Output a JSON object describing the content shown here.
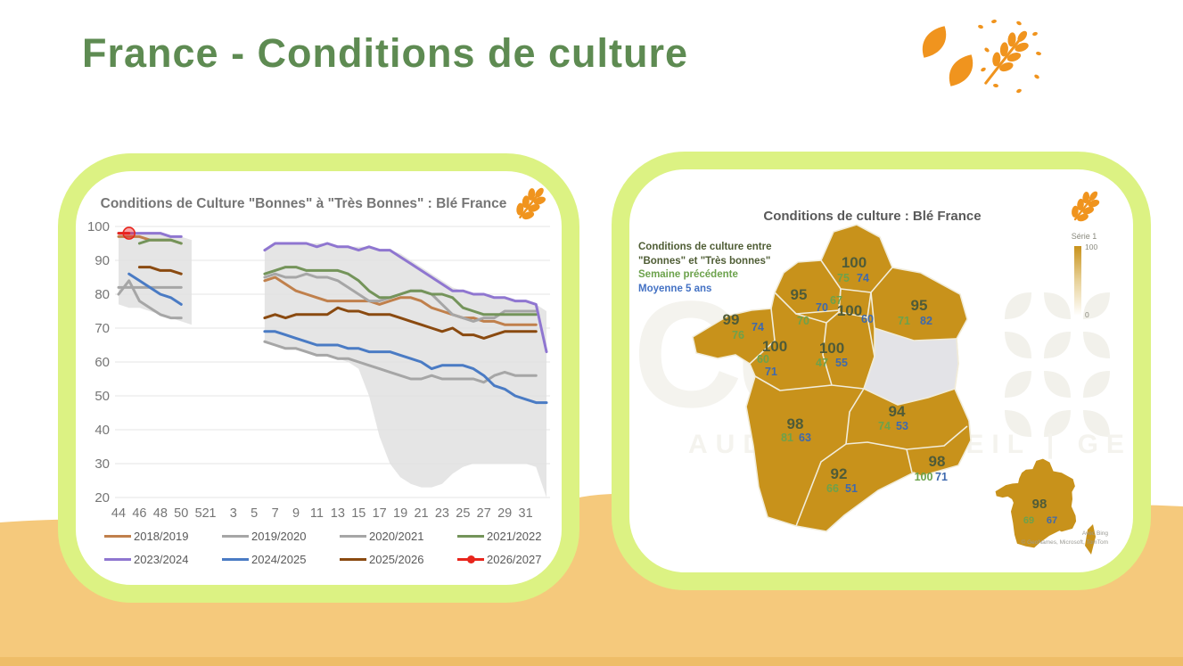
{
  "header": {
    "title": "France - Conditions de culture"
  },
  "colors": {
    "header_green": "#5E8B52",
    "panel_border": "#DCF283",
    "wave_tan": "#F5C97C",
    "accent_orange": "#F0941E",
    "map_gold": "#C8921B",
    "map_no_data": "#E3E3E7",
    "map_border": "#F1ECDA",
    "number_current": "#4F5B38",
    "number_prev_week": "#6CA24C",
    "number_avg_5y": "#3E69AE",
    "axis_text": "#757575",
    "legend_text": "#595959"
  },
  "chart_data": [
    {
      "type": "line",
      "title": "Conditions de Culture \"Bonnes\" à \"Très Bonnes\" : Blé France",
      "xlabel": "semaine",
      "ylabel": "",
      "ylim": [
        20,
        100
      ],
      "y_ticks": [
        100,
        90,
        80,
        70,
        60,
        50,
        40,
        30,
        20
      ],
      "x_weeks": [
        44,
        45,
        46,
        47,
        48,
        49,
        50,
        51,
        52,
        1,
        2,
        3,
        4,
        5,
        6,
        7,
        8,
        9,
        10,
        11,
        12,
        13,
        14,
        15,
        16,
        17,
        18,
        19,
        20,
        21,
        22,
        23,
        24,
        25,
        26,
        27,
        28,
        29,
        30,
        31,
        32,
        33
      ],
      "x_tick_labels": [
        "44",
        "46",
        "48",
        "50",
        "52",
        "1",
        "3",
        "5",
        "7",
        "9",
        "11",
        "13",
        "15",
        "17",
        "19",
        "21",
        "23",
        "25",
        "27",
        "29",
        "31"
      ],
      "grid": true,
      "legend_position": "bottom",
      "band": {
        "name": "plage min-max historique",
        "color": "#E0E0E0",
        "segments": [
          {
            "from": 0,
            "upper": [
              98,
              98,
              98,
              98,
              98,
              97,
              97,
              96
            ],
            "lower": [
              77,
              76,
              76,
              75,
              74,
              73,
              72,
              71
            ]
          },
          {
            "from": 14,
            "upper": [
              93,
              95,
              95,
              95,
              95,
              95,
              95,
              94,
              94,
              94,
              94,
              93,
              93,
              92,
              90,
              88,
              86,
              84,
              82,
              81,
              80,
              80,
              79,
              79,
              78,
              78,
              77,
              75
            ],
            "lower": [
              66,
              65,
              64,
              64,
              63,
              62,
              62,
              61,
              60,
              58,
              50,
              38,
              30,
              26,
              24,
              23,
              23,
              24,
              27,
              29,
              30,
              30,
              30,
              30,
              30,
              30,
              29,
              20
            ]
          }
        ]
      },
      "series": [
        {
          "name": "2018/2019",
          "color": "#C0804C",
          "values": [
            97,
            97,
            97,
            96,
            96,
            96,
            95,
            null,
            null,
            null,
            null,
            null,
            null,
            null,
            84,
            85,
            83,
            81,
            80,
            79,
            78,
            78,
            78,
            78,
            78,
            77,
            78,
            79,
            79,
            78,
            76,
            75,
            74,
            73,
            73,
            72,
            72,
            71,
            71,
            71,
            71,
            null
          ]
        },
        {
          "name": "2019/2020",
          "color": "#A6A6A6",
          "values": [
            80,
            84,
            78,
            76,
            74,
            73,
            73,
            null,
            null,
            null,
            null,
            null,
            null,
            null,
            85,
            86,
            85,
            85,
            86,
            85,
            85,
            84,
            82,
            80,
            78,
            78,
            79,
            80,
            81,
            81,
            80,
            77,
            74,
            73,
            72,
            73,
            73,
            75,
            75,
            75,
            75,
            null
          ]
        },
        {
          "name": "2020/2021",
          "color": "#A6A6A6",
          "values": [
            82,
            82,
            82,
            82,
            82,
            82,
            82,
            null,
            null,
            null,
            null,
            null,
            null,
            null,
            66,
            65,
            64,
            64,
            63,
            62,
            62,
            61,
            61,
            60,
            59,
            58,
            57,
            56,
            55,
            55,
            56,
            55,
            55,
            55,
            55,
            54,
            56,
            57,
            56,
            56,
            56,
            null
          ]
        },
        {
          "name": "2021/2022",
          "color": "#74945A",
          "values": [
            null,
            null,
            95,
            96,
            96,
            96,
            95,
            null,
            null,
            null,
            null,
            null,
            null,
            null,
            86,
            87,
            88,
            88,
            87,
            87,
            87,
            87,
            86,
            84,
            81,
            79,
            79,
            80,
            81,
            81,
            80,
            80,
            79,
            76,
            75,
            74,
            74,
            74,
            74,
            74,
            74,
            null
          ]
        },
        {
          "name": "2023/2024",
          "color": "#8F76D0",
          "values": [
            98,
            98,
            98,
            98,
            98,
            97,
            97,
            null,
            null,
            null,
            null,
            null,
            null,
            null,
            93,
            95,
            95,
            95,
            95,
            94,
            95,
            94,
            94,
            93,
            94,
            93,
            93,
            91,
            89,
            87,
            85,
            83,
            81,
            81,
            80,
            80,
            79,
            79,
            78,
            78,
            77,
            63
          ]
        },
        {
          "name": "2024/2025",
          "color": "#4A7BC4",
          "values": [
            null,
            86,
            84,
            82,
            80,
            79,
            77,
            null,
            null,
            null,
            null,
            null,
            null,
            null,
            69,
            69,
            68,
            67,
            66,
            65,
            65,
            65,
            64,
            64,
            63,
            63,
            63,
            62,
            61,
            60,
            58,
            59,
            59,
            59,
            58,
            56,
            53,
            52,
            50,
            49,
            48,
            48
          ]
        },
        {
          "name": "2025/2026",
          "color": "#8A4A10",
          "values": [
            null,
            null,
            88,
            88,
            87,
            87,
            86,
            null,
            null,
            null,
            null,
            null,
            null,
            null,
            73,
            74,
            73,
            74,
            74,
            74,
            74,
            76,
            75,
            75,
            74,
            74,
            74,
            73,
            72,
            71,
            70,
            69,
            70,
            68,
            68,
            67,
            68,
            69,
            69,
            69,
            69,
            null
          ]
        },
        {
          "name": "2026/2027",
          "color": "#E8251C",
          "marker_at": 1,
          "values": [
            98,
            98,
            null,
            null,
            null,
            null,
            null,
            null,
            null,
            null,
            null,
            null,
            null,
            null,
            null,
            null,
            null,
            null,
            null,
            null,
            null,
            null,
            null,
            null,
            null,
            null,
            null,
            null,
            null,
            null,
            null,
            null,
            null,
            null,
            null,
            null,
            null,
            null,
            null,
            null,
            null,
            null
          ]
        }
      ]
    },
    {
      "type": "map",
      "title": "Conditions de culture : Blé France",
      "legend_text": {
        "line1": "Conditions de culture entre",
        "line2": "\"Bonnes\" et \"Très bonnes\"",
        "prev_label": "Semaine précédente",
        "avg_label": "Moyenne 5 ans"
      },
      "scale": {
        "label": "Série 1",
        "max": "100",
        "min": "0"
      },
      "regions": [
        {
          "id": "hauts-de-france",
          "current": 100,
          "prev_week": 75,
          "avg_5y": 74
        },
        {
          "id": "normandie",
          "current": 95,
          "prev_week": 70,
          "avg_5y": 70
        },
        {
          "id": "ile-de-france",
          "current": 100,
          "prev_week": 67,
          "avg_5y": 60
        },
        {
          "id": "grand-est",
          "current": 95,
          "prev_week": 71,
          "avg_5y": 82
        },
        {
          "id": "bretagne",
          "current": 99,
          "prev_week": 76,
          "avg_5y": 74
        },
        {
          "id": "pays-de-la-loire",
          "current": 100,
          "prev_week": 60,
          "avg_5y": 71
        },
        {
          "id": "centre-val-de-loire",
          "current": 100,
          "prev_week": 47,
          "avg_5y": 55
        },
        {
          "id": "bourgogne-franche-comte",
          "current": null,
          "prev_week": null,
          "avg_5y": null
        },
        {
          "id": "nouvelle-aquitaine",
          "current": 98,
          "prev_week": 81,
          "avg_5y": 63
        },
        {
          "id": "auvergne-rhone-alpes",
          "current": 94,
          "prev_week": 74,
          "avg_5y": 53
        },
        {
          "id": "occitanie",
          "current": 92,
          "prev_week": 66,
          "avg_5y": 51
        },
        {
          "id": "provence-alpes-cote-azur",
          "current": 98,
          "prev_week": 100,
          "avg_5y": 71
        }
      ],
      "inset_france": {
        "current": 98,
        "prev_week": 69,
        "avg_5y": 67
      },
      "attribution": [
        "Avec Bing",
        "© GeoNames, Microsoft, TomTom"
      ],
      "watermark": {
        "brand": "Cere",
        "tagline": "AUDIT | CONSEIL | GESTION"
      }
    }
  ]
}
